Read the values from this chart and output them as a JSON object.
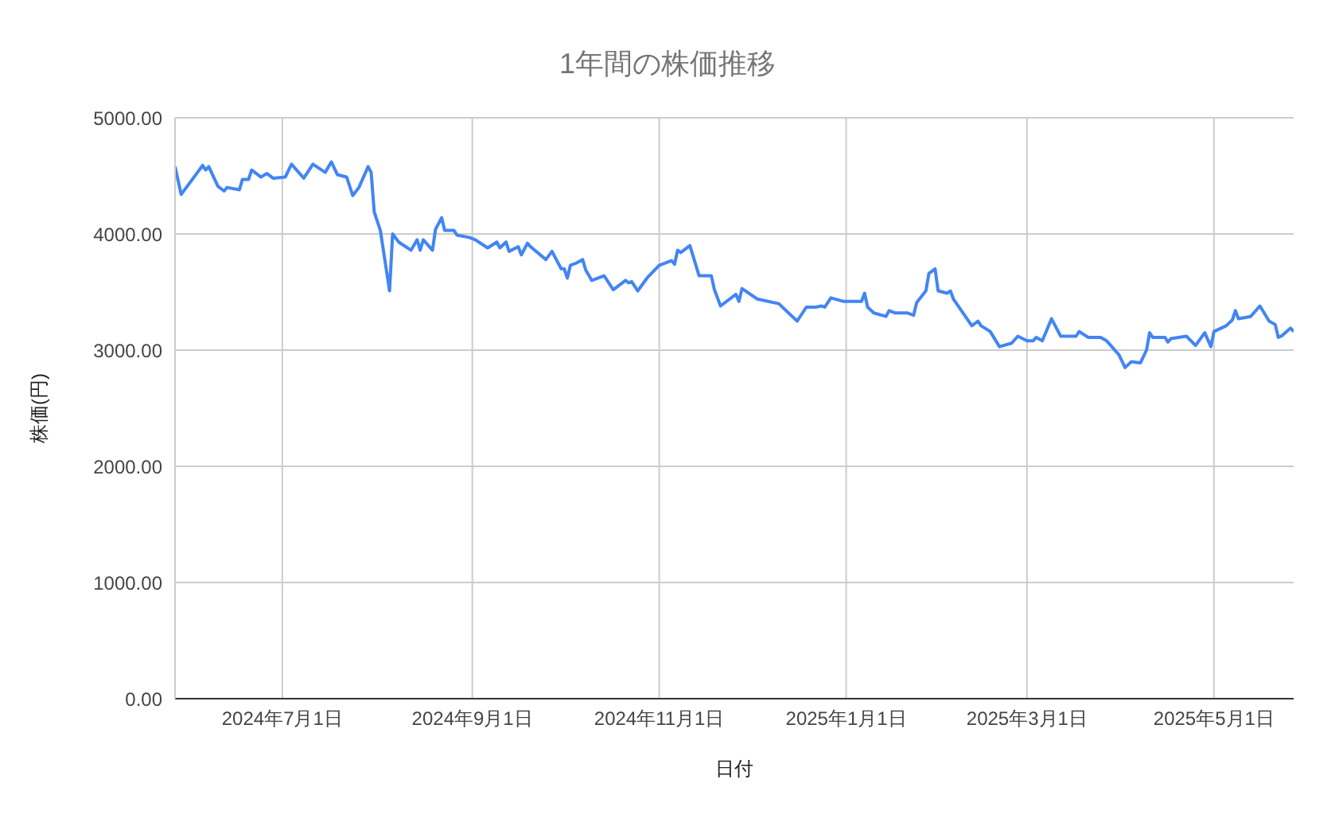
{
  "chart_data": {
    "type": "line",
    "title": "1年間の株価推移",
    "xlabel": "日付",
    "ylabel": "株価(円)",
    "xlim": [
      "2024-05-27",
      "2025-05-27"
    ],
    "xticks": [
      {
        "value": "2024-07-01",
        "label": "2024年7月1日"
      },
      {
        "value": "2024-09-01",
        "label": "2024年9月1日"
      },
      {
        "value": "2024-11-01",
        "label": "2024年11月1日"
      },
      {
        "value": "2025-01-01",
        "label": "2025年1月1日"
      },
      {
        "value": "2025-03-01",
        "label": "2025年3月1日"
      },
      {
        "value": "2025-05-01",
        "label": "2025年5月1日"
      }
    ],
    "ylim": [
      0,
      5000
    ],
    "yticks": [
      {
        "value": 0,
        "label": "0.00"
      },
      {
        "value": 1000,
        "label": "1000.00"
      },
      {
        "value": 2000,
        "label": "2000.00"
      },
      {
        "value": 3000,
        "label": "3000.00"
      },
      {
        "value": 4000,
        "label": "4000.00"
      },
      {
        "value": 5000,
        "label": "5000.00"
      }
    ],
    "grid": true,
    "marker": "none",
    "line_style": "solid",
    "x": [
      "2024-05-27",
      "2024-05-29",
      "2024-06-05",
      "2024-06-06",
      "2024-06-07",
      "2024-06-10",
      "2024-06-12",
      "2024-06-13",
      "2024-06-17",
      "2024-06-18",
      "2024-06-20",
      "2024-06-21",
      "2024-06-24",
      "2024-06-26",
      "2024-06-28",
      "2024-07-02",
      "2024-07-04",
      "2024-07-08",
      "2024-07-11",
      "2024-07-15",
      "2024-07-17",
      "2024-07-19",
      "2024-07-22",
      "2024-07-24",
      "2024-07-26",
      "2024-07-29",
      "2024-07-30",
      "2024-07-31",
      "2024-08-02",
      "2024-08-05",
      "2024-08-06",
      "2024-08-08",
      "2024-08-12",
      "2024-08-14",
      "2024-08-15",
      "2024-08-16",
      "2024-08-19",
      "2024-08-20",
      "2024-08-22",
      "2024-08-23",
      "2024-08-26",
      "2024-08-27",
      "2024-08-31",
      "2024-09-02",
      "2024-09-06",
      "2024-09-09",
      "2024-09-10",
      "2024-09-12",
      "2024-09-13",
      "2024-09-16",
      "2024-09-17",
      "2024-09-19",
      "2024-09-20",
      "2024-09-25",
      "2024-09-27",
      "2024-09-30",
      "2024-10-01",
      "2024-10-02",
      "2024-10-03",
      "2024-10-05",
      "2024-10-07",
      "2024-10-08",
      "2024-10-10",
      "2024-10-14",
      "2024-10-17",
      "2024-10-21",
      "2024-10-22",
      "2024-10-23",
      "2024-10-25",
      "2024-10-28",
      "2024-11-01",
      "2024-11-05",
      "2024-11-06",
      "2024-11-07",
      "2024-11-08",
      "2024-11-11",
      "2024-11-14",
      "2024-11-18",
      "2024-11-19",
      "2024-11-21",
      "2024-11-26",
      "2024-11-27",
      "2024-11-28",
      "2024-12-03",
      "2024-12-10",
      "2024-12-16",
      "2024-12-19",
      "2024-12-22",
      "2024-12-24",
      "2024-12-25",
      "2024-12-27",
      "2024-12-31",
      "2025-01-06",
      "2025-01-07",
      "2025-01-08",
      "2025-01-10",
      "2025-01-14",
      "2025-01-15",
      "2025-01-17",
      "2025-01-21",
      "2025-01-23",
      "2025-01-24",
      "2025-01-27",
      "2025-01-28",
      "2025-01-30",
      "2025-01-31",
      "2025-02-03",
      "2025-02-04",
      "2025-02-05",
      "2025-02-11",
      "2025-02-13",
      "2025-02-14",
      "2025-02-17",
      "2025-02-20",
      "2025-02-24",
      "2025-02-26",
      "2025-03-01",
      "2025-03-03",
      "2025-03-04",
      "2025-03-06",
      "2025-03-09",
      "2025-03-12",
      "2025-03-17",
      "2025-03-18",
      "2025-03-21",
      "2025-03-25",
      "2025-03-27",
      "2025-03-31",
      "2025-04-02",
      "2025-04-04",
      "2025-04-07",
      "2025-04-09",
      "2025-04-10",
      "2025-04-11",
      "2025-04-15",
      "2025-04-16",
      "2025-04-17",
      "2025-04-22",
      "2025-04-25",
      "2025-04-28",
      "2025-04-30",
      "2025-05-01",
      "2025-05-05",
      "2025-05-07",
      "2025-05-08",
      "2025-05-09",
      "2025-05-13",
      "2025-05-16",
      "2025-05-19",
      "2025-05-21",
      "2025-05-22",
      "2025-05-23",
      "2025-05-26",
      "2025-05-27"
    ],
    "series": [
      {
        "color": "#4285f4",
        "values": [
          4580,
          4340,
          4590,
          4550,
          4580,
          4410,
          4370,
          4400,
          4380,
          4470,
          4470,
          4550,
          4490,
          4520,
          4480,
          4490,
          4600,
          4480,
          4600,
          4530,
          4620,
          4510,
          4490,
          4330,
          4400,
          4580,
          4530,
          4190,
          4030,
          3510,
          4000,
          3930,
          3860,
          3950,
          3860,
          3950,
          3860,
          4040,
          4140,
          4030,
          4030,
          3990,
          3970,
          3950,
          3880,
          3930,
          3880,
          3930,
          3850,
          3890,
          3820,
          3920,
          3890,
          3780,
          3850,
          3700,
          3700,
          3620,
          3730,
          3750,
          3780,
          3690,
          3600,
          3640,
          3520,
          3600,
          3580,
          3590,
          3510,
          3620,
          3730,
          3770,
          3740,
          3860,
          3840,
          3900,
          3640,
          3640,
          3520,
          3380,
          3480,
          3420,
          3530,
          3440,
          3400,
          3250,
          3370,
          3370,
          3380,
          3370,
          3450,
          3420,
          3420,
          3490,
          3370,
          3320,
          3290,
          3340,
          3320,
          3320,
          3300,
          3410,
          3510,
          3660,
          3700,
          3510,
          3490,
          3510,
          3440,
          3210,
          3250,
          3210,
          3160,
          3030,
          3060,
          3120,
          3080,
          3080,
          3110,
          3080,
          3270,
          3120,
          3120,
          3160,
          3110,
          3110,
          3080,
          2960,
          2850,
          2900,
          2890,
          3000,
          3150,
          3110,
          3110,
          3070,
          3100,
          3120,
          3040,
          3150,
          3030,
          3160,
          3210,
          3260,
          3340,
          3270,
          3290,
          3380,
          3250,
          3220,
          3110,
          3120,
          3190,
          3160
        ]
      }
    ]
  }
}
